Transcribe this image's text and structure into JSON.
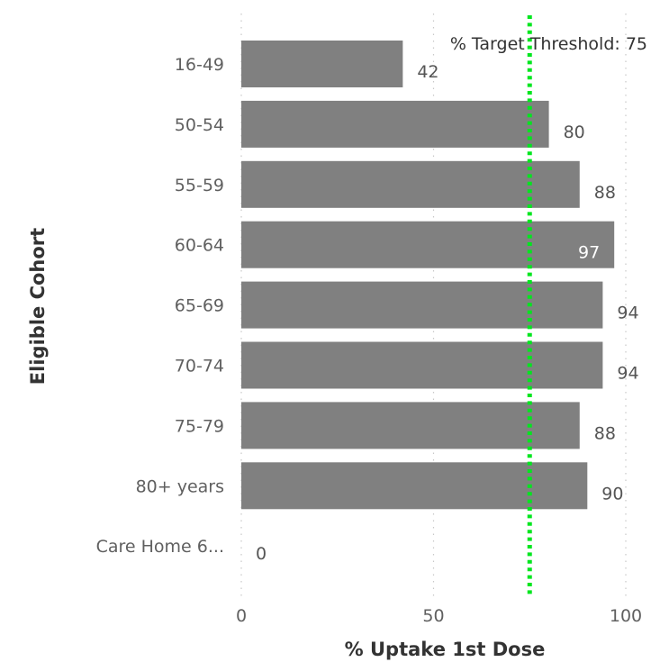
{
  "chart_data": {
    "type": "bar",
    "orientation": "horizontal",
    "categories": [
      "16-49",
      "50-54",
      "55-59",
      "60-64",
      "65-69",
      "70-74",
      "75-79",
      "80+ years",
      "Care Home 6..."
    ],
    "values": [
      42,
      80,
      88,
      97,
      94,
      94,
      88,
      90,
      0
    ],
    "data_labels": [
      "42",
      "80",
      "88",
      "97",
      "94",
      "94",
      "88",
      "90",
      "0"
    ],
    "xlabel": "% Uptake 1st Dose",
    "ylabel": "Eligible Cohort",
    "xlim": [
      0,
      100
    ],
    "x_ticks": [
      0,
      50,
      100
    ],
    "x_tick_labels": [
      "0",
      "50",
      "100"
    ],
    "grid": "vertical dotted",
    "reference_line": {
      "value": 75,
      "label": "% Target Threshold: 75",
      "color": "#00e61e",
      "style": "dotted"
    },
    "colors": {
      "bar": "#808080",
      "grid": "#c8c8c8"
    }
  }
}
